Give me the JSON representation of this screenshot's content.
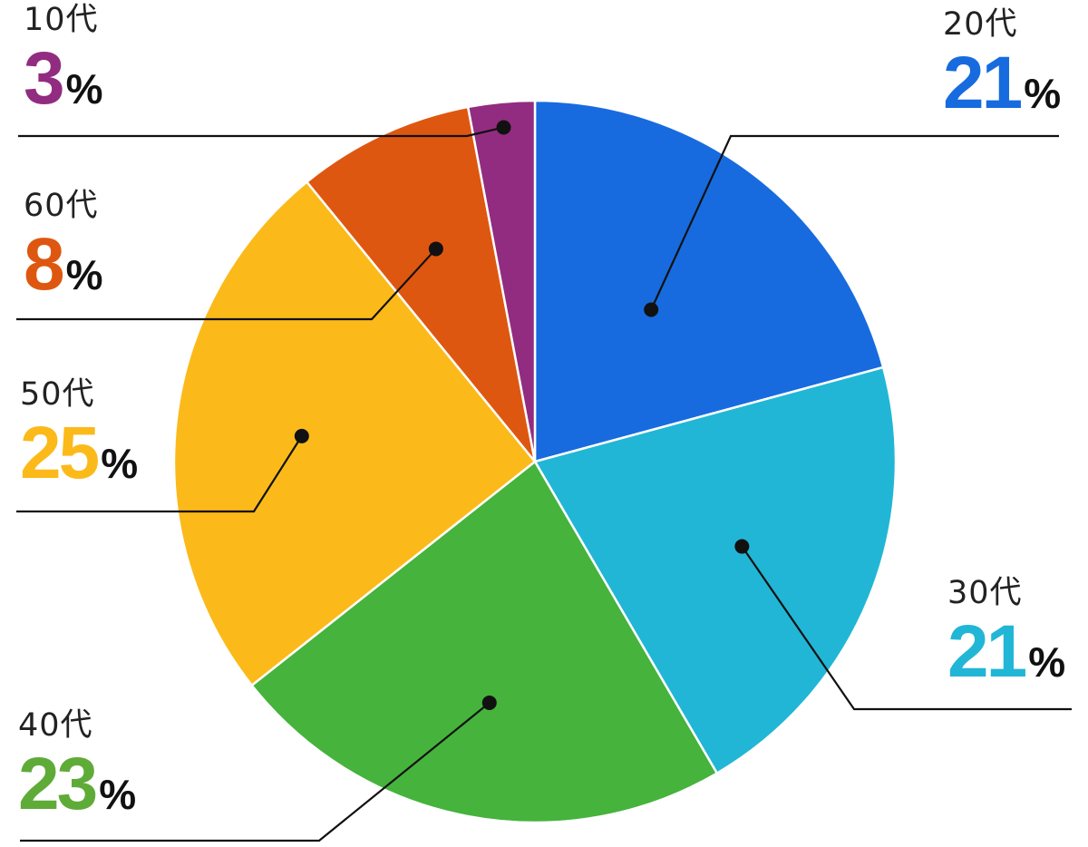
{
  "chart_data": {
    "type": "pie",
    "unit": "%",
    "slices": [
      {
        "label": "20代",
        "value": 21,
        "color": "#176bdf"
      },
      {
        "label": "30代",
        "value": 21,
        "color": "#22b6d6"
      },
      {
        "label": "40代",
        "value": 23,
        "color": "#45b33c"
      },
      {
        "label": "50代",
        "value": 25,
        "color": "#fbba1a"
      },
      {
        "label": "60代",
        "value": 8,
        "color": "#de5710"
      },
      {
        "label": "10代",
        "value": 3,
        "color": "#922c80"
      }
    ],
    "label_colors": [
      "#176bdf",
      "#22b6d6",
      "#5fab38",
      "#fbba1a",
      "#de5710",
      "#922c80"
    ]
  }
}
